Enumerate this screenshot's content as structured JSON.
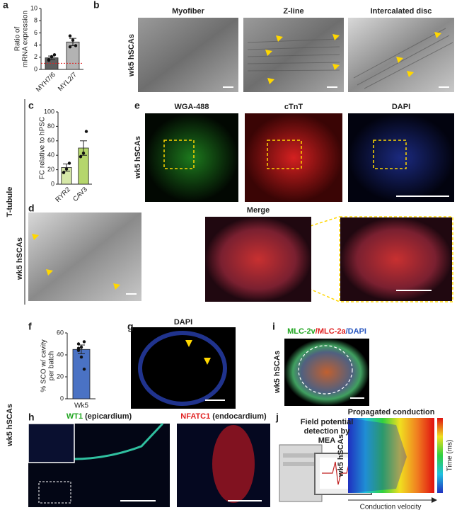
{
  "panels": {
    "a": {
      "label": "a",
      "chart": {
        "type": "bar",
        "ylabel": [
          "Ratio of",
          "mRNA expression"
        ],
        "categories": [
          "MYH7/6",
          "MYL2/7"
        ],
        "values": [
          1.9,
          4.5
        ],
        "errors": [
          0.3,
          0.6
        ],
        "points": [
          [
            1.5,
            2.1,
            2.4,
            1.6
          ],
          [
            5.5,
            4.8,
            3.9,
            3.7
          ]
        ],
        "colors": [
          "#5e5e5e",
          "#b3b3b3"
        ],
        "ylim": [
          0,
          10
        ],
        "yticks": [
          0,
          2,
          4,
          6,
          8,
          10
        ],
        "reference_line": 1
      }
    },
    "b": {
      "label": "b",
      "titles": [
        "Myofiber",
        "Z-line",
        "Intercalated disc"
      ],
      "side": "wk5 hSCAs"
    },
    "c": {
      "label": "c",
      "chart": {
        "type": "bar",
        "ylabel": [
          "FC relative to hPSC"
        ],
        "categories": [
          "RYR2",
          "CAV3"
        ],
        "values": [
          23,
          50
        ],
        "errors": [
          5,
          10
        ],
        "points": [
          [
            16,
            21,
            29
          ],
          [
            38,
            43,
            73
          ]
        ],
        "colors": [
          "#d6e8a8",
          "#b5d66c"
        ],
        "ylim": [
          0,
          100
        ],
        "yticks": [
          0,
          20,
          40,
          60,
          80,
          100
        ]
      }
    },
    "t_tubule": "T-tubule",
    "d": {
      "label": "d",
      "side": "wk5 hSCAs"
    },
    "e": {
      "label": "e",
      "titles": [
        "WGA-488",
        "cTnT",
        "DAPI"
      ],
      "side": "wk5 hSCAs",
      "merge": "Merge"
    },
    "f": {
      "label": "f",
      "chart": {
        "type": "bar",
        "ylabel": [
          "% SCO w/ cavity",
          "per batch"
        ],
        "categories": [
          "Wk5"
        ],
        "values": [
          45
        ],
        "errors": [
          4
        ],
        "points": [
          [
            50,
            38,
            27,
            44,
            47,
            52,
            46
          ]
        ],
        "colors": [
          "#4a72c4"
        ],
        "ylim": [
          0,
          60
        ],
        "yticks": [
          0,
          20,
          40,
          60
        ]
      }
    },
    "g": {
      "label": "g",
      "title": "DAPI"
    },
    "i": {
      "label": "i",
      "title": [
        "MLC-2v",
        "/MLC-2a",
        "/DAPI"
      ],
      "side": "wk5 hSCAs"
    },
    "bottom_side": "wk5 hSCAs",
    "h": {
      "label": "h",
      "titles": [
        [
          "WT1",
          " (epicardium)"
        ],
        [
          "NFATC1",
          " (endocardium)"
        ]
      ]
    },
    "j": {
      "label": "j",
      "caption": [
        "Field potential",
        "detection by",
        "MEA"
      ],
      "title": "Propagated conduction",
      "colorbar_label": "Time (ms)",
      "side": "wk5 hSCAs",
      "xlabel": "Conduction velocity"
    }
  }
}
